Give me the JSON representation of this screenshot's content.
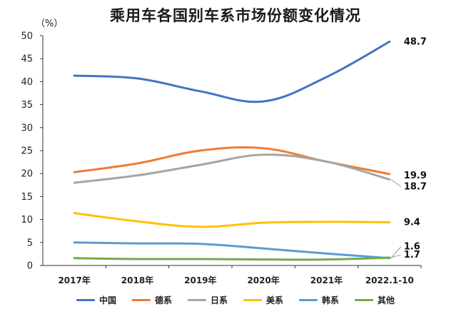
{
  "chart_data": {
    "type": "line",
    "title": "乘用车各国别车系市场份额变化情况",
    "y_unit": "（%）",
    "ylim": [
      0,
      50
    ],
    "yticks": [
      0,
      5,
      10,
      15,
      20,
      25,
      30,
      35,
      40,
      45,
      50
    ],
    "categories": [
      "2017年",
      "2018年",
      "2019年",
      "2020年",
      "2021年",
      "2022.1-10"
    ],
    "grid": false,
    "legend_position": "bottom",
    "series": [
      {
        "name": "中国",
        "color": "#4472c4",
        "values": [
          41.3,
          40.7,
          37.9,
          35.7,
          41.0,
          48.7
        ],
        "end_label": "48.7"
      },
      {
        "name": "德系",
        "color": "#ed7d31",
        "values": [
          20.3,
          22.2,
          25.0,
          25.5,
          22.6,
          19.9
        ],
        "end_label": "19.9"
      },
      {
        "name": "日系",
        "color": "#a5a5a5",
        "values": [
          18.0,
          19.6,
          21.9,
          24.1,
          22.6,
          18.7
        ],
        "end_label": "18.7"
      },
      {
        "name": "美系",
        "color": "#ffc000",
        "values": [
          11.4,
          9.6,
          8.4,
          9.3,
          9.5,
          9.4
        ],
        "end_label": "9.4"
      },
      {
        "name": "韩系",
        "color": "#5b9bd5",
        "values": [
          5.0,
          4.8,
          4.7,
          3.7,
          2.6,
          1.6
        ],
        "end_label": "1.6"
      },
      {
        "name": "其他",
        "color": "#70ad47",
        "values": [
          1.6,
          1.4,
          1.4,
          1.3,
          1.3,
          1.7
        ],
        "end_label": "1.7"
      }
    ]
  }
}
